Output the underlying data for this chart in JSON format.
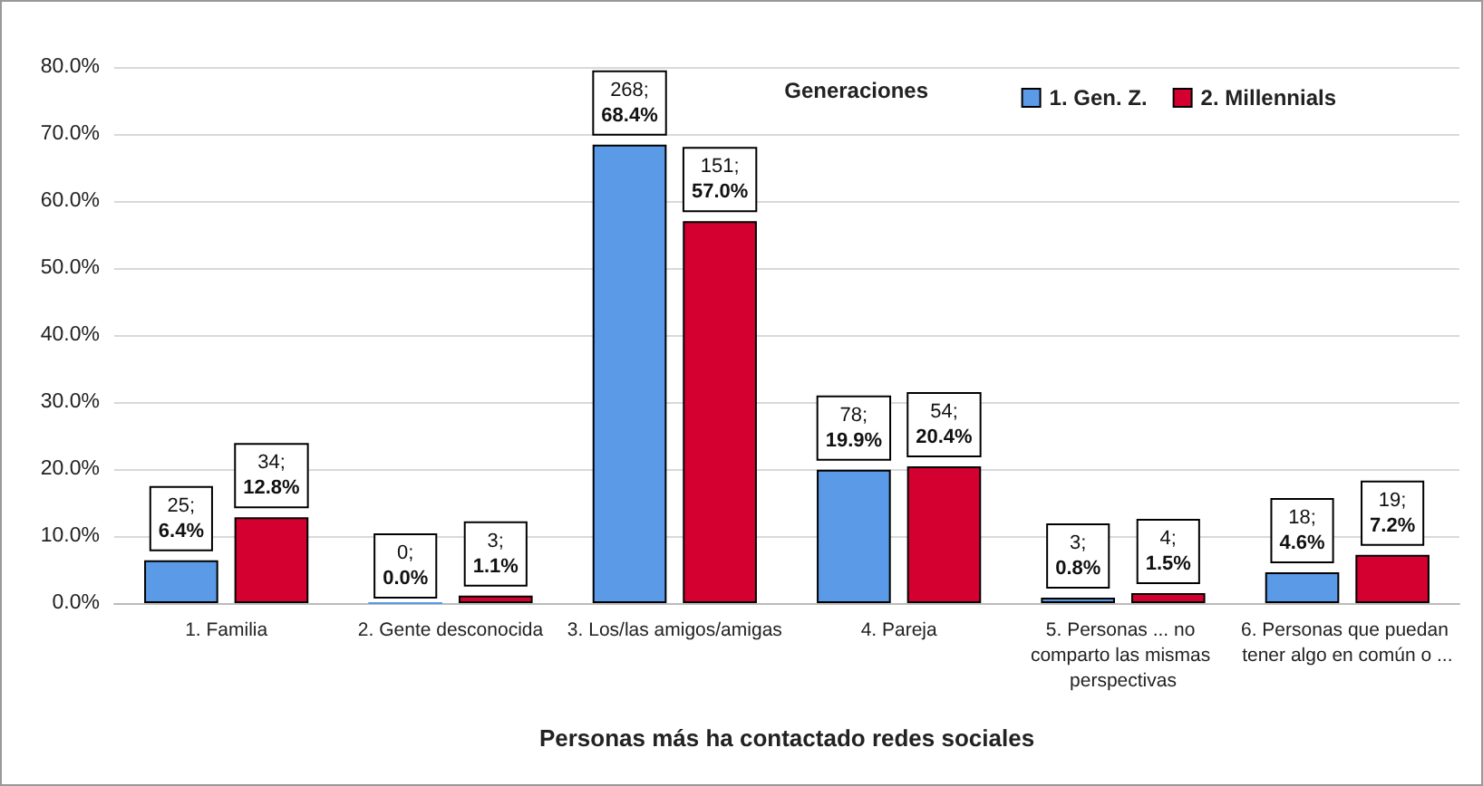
{
  "chart_data": {
    "type": "bar",
    "xlabel": "Personas más ha contactado redes sociales",
    "legend_title": "Generaciones",
    "categories": [
      "1. Familia",
      "2. Gente desconocida",
      "3. Los/las amigos/amigas",
      "4. Pareja",
      "5. Personas ... no comparto las mismas perspectivas",
      "6. Personas que puedan tener algo en común o ..."
    ],
    "series": [
      {
        "name": "1. Gen. Z.",
        "color": "#5a9ae6",
        "values": [
          6.4,
          0.0,
          68.4,
          19.9,
          0.8,
          4.6
        ],
        "value_labels": [
          "25;\n6.4%",
          "0;\n0.0%",
          "268;\n68.4%",
          "78;\n19.9%",
          "3;\n0.8%",
          "18;\n4.6%"
        ]
      },
      {
        "name": "2. Millennials",
        "color": "#d4002f",
        "values": [
          12.8,
          1.1,
          57.0,
          20.4,
          1.5,
          7.2
        ],
        "value_labels": [
          "34;\n12.8%",
          "3;\n1.1%",
          "151;\n57.0%",
          "54;\n20.4%",
          "4;\n1.5%",
          "19;\n7.2%"
        ]
      }
    ],
    "ylim": [
      0,
      80
    ],
    "yticks": [
      {
        "value": 0,
        "label": "0.0%"
      },
      {
        "value": 10,
        "label": "10.0%"
      },
      {
        "value": 20,
        "label": "20.0%"
      },
      {
        "value": 30,
        "label": "30.0%"
      },
      {
        "value": 40,
        "label": "40.0%"
      },
      {
        "value": 50,
        "label": "50.0%"
      },
      {
        "value": 60,
        "label": "60.0%"
      },
      {
        "value": 70,
        "label": "70.0%"
      },
      {
        "value": 80,
        "label": "80.0%"
      }
    ],
    "grid": "y",
    "legend": "top right"
  }
}
